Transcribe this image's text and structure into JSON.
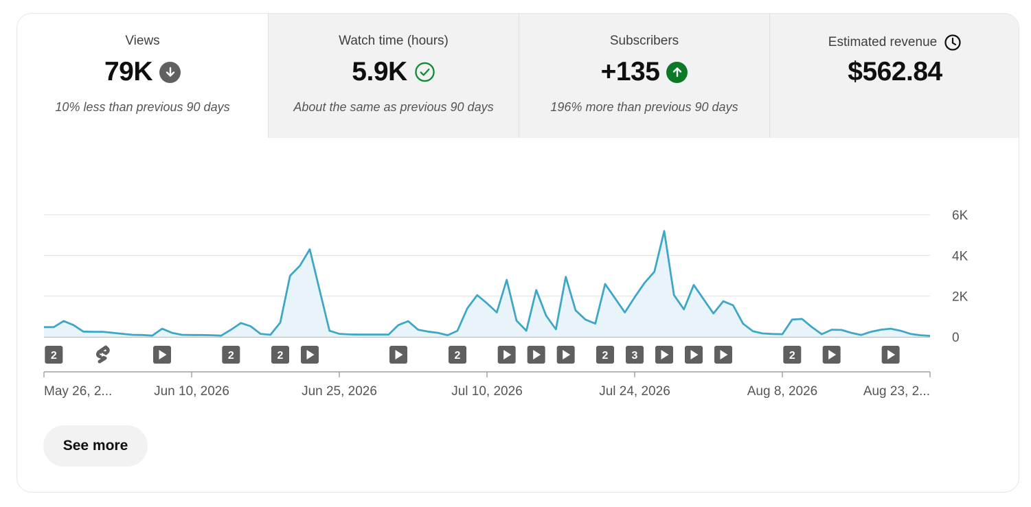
{
  "metrics": [
    {
      "label": "Views",
      "value": "79K",
      "comparison": "10% less than previous 90 days",
      "status_icon": "arrow-down-circle-icon"
    },
    {
      "label": "Watch time (hours)",
      "value": "5.9K",
      "comparison": "About the same as previous 90 days",
      "status_icon": "check-circle-icon"
    },
    {
      "label": "Subscribers",
      "value": "+135",
      "comparison": "196% more than previous 90 days",
      "status_icon": "arrow-up-circle-icon"
    },
    {
      "label": "Estimated revenue",
      "value": "$562.84",
      "comparison": "",
      "status_icon": "clock-icon"
    }
  ],
  "colors": {
    "line": "#3ea6c8",
    "fill": "#e8f4fa",
    "down_icon": "#606060",
    "check_icon": "#138a36",
    "up_icon": "#0b7a25",
    "marker": "#5f5f5f"
  },
  "chart_data": {
    "type": "area",
    "x_start": "2026-05-26",
    "x_ticks": [
      "May 26, 2...",
      "Jun 10, 2026",
      "Jun 25, 2026",
      "Jul 10, 2026",
      "Jul 24, 2026",
      "Aug 8, 2026",
      "Aug 23, 2..."
    ],
    "y_ticks": [
      "0",
      "2K",
      "4K",
      "6K"
    ],
    "ylim": [
      0,
      6000
    ],
    "grid": true,
    "values": [
      480,
      480,
      780,
      580,
      260,
      250,
      250,
      200,
      150,
      100,
      90,
      60,
      400,
      200,
      100,
      90,
      90,
      80,
      60,
      350,
      680,
      520,
      150,
      100,
      700,
      3000,
      3500,
      4300,
      2300,
      300,
      150,
      120,
      110,
      110,
      110,
      110,
      580,
      770,
      350,
      260,
      200,
      80,
      300,
      1400,
      2050,
      1650,
      1200,
      2800,
      800,
      300,
      2300,
      1050,
      370,
      2950,
      1300,
      850,
      650,
      2600,
      1900,
      1200,
      1950,
      2650,
      3200,
      5200,
      2050,
      1350,
      2550,
      1850,
      1150,
      1750,
      1550,
      650,
      280,
      170,
      140,
      130,
      850,
      880,
      480,
      130,
      350,
      340,
      200,
      90,
      250,
      350,
      400,
      300,
      150,
      80,
      50
    ],
    "markers": [
      {
        "day": 1,
        "type": "count",
        "label": "2"
      },
      {
        "day": 6,
        "type": "shorts"
      },
      {
        "day": 12,
        "type": "video"
      },
      {
        "day": 19,
        "type": "count",
        "label": "2"
      },
      {
        "day": 24,
        "type": "count",
        "label": "2"
      },
      {
        "day": 27,
        "type": "video"
      },
      {
        "day": 36,
        "type": "video"
      },
      {
        "day": 42,
        "type": "count",
        "label": "2"
      },
      {
        "day": 47,
        "type": "video"
      },
      {
        "day": 50,
        "type": "video"
      },
      {
        "day": 53,
        "type": "video"
      },
      {
        "day": 57,
        "type": "count",
        "label": "2"
      },
      {
        "day": 60,
        "type": "count",
        "label": "3"
      },
      {
        "day": 63,
        "type": "video"
      },
      {
        "day": 66,
        "type": "video"
      },
      {
        "day": 69,
        "type": "video"
      },
      {
        "day": 76,
        "type": "count",
        "label": "2"
      },
      {
        "day": 80,
        "type": "video"
      },
      {
        "day": 86,
        "type": "video"
      }
    ]
  },
  "see_more_label": "See more"
}
